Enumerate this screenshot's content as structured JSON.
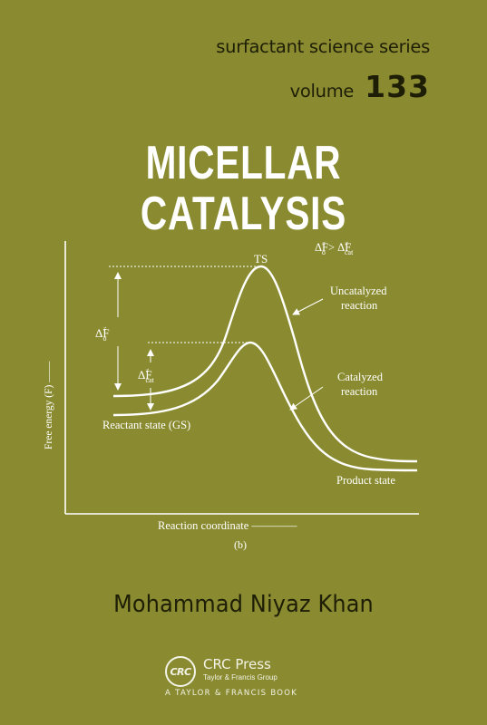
{
  "series": {
    "name": "surfactant science series",
    "volume_label": "volume",
    "volume_number": "133"
  },
  "title": "MICELLAR CATALYSIS",
  "diagram": {
    "ts_label": "TS",
    "inequality": {
      "lhs_sup": "≠",
      "gt": " > ",
      "rhs_sup": "≠",
      "rhs_sub": "cat"
    },
    "uncatalyzed": [
      "Uncatalyzed",
      "reaction"
    ],
    "catalyzed": [
      "Catalyzed",
      "reaction"
    ],
    "delta_o": {
      "sup": "≠",
      "sub": "o"
    },
    "delta_cat": {
      "sup": "≠",
      "sub": "cat"
    },
    "reactant_state": "Reactant state (GS)",
    "product_state": "Product state",
    "y_axis_label": "Free energy (F) ——",
    "x_axis_label": "Reaction coordinate ————",
    "panel_label": "(b)"
  },
  "author": "Mohammad Niyaz Khan",
  "publisher": {
    "logo_text": "CRC",
    "name": "CRC Press",
    "group": "Taylor & Francis Group",
    "book_line": "A TAYLOR & FRANCIS BOOK"
  },
  "colors": {
    "background": "#8a8b30",
    "dark_text": "#1e1e06",
    "white": "#ffffff"
  }
}
